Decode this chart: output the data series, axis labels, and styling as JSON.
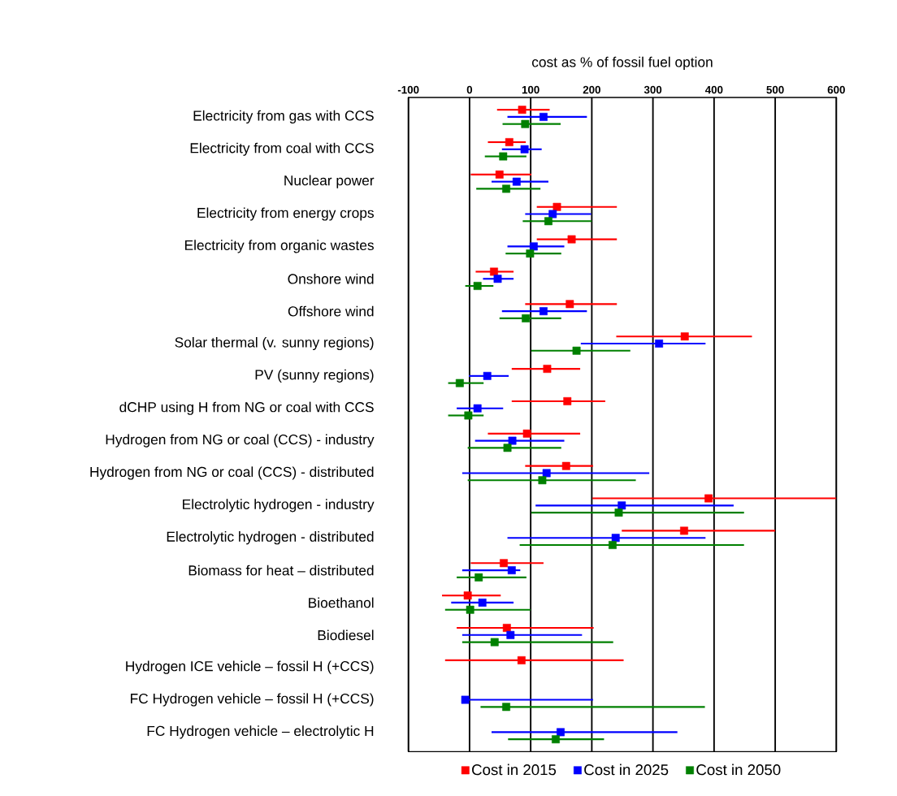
{
  "chart_data": {
    "type": "scatter",
    "orientation": "horizontal",
    "xlabel": "cost as % of fossil fuel option",
    "categories": [
      "Electricity from gas with CCS",
      "Electricity from coal with CCS",
      "Nuclear power",
      "Electricity from energy crops",
      "Electricity from organic wastes",
      "Onshore wind",
      "Offshore wind",
      "Solar thermal (v. sunny regions)",
      "PV (sunny regions)",
      "dCHP using H from NG or coal with CCS",
      "Hydrogen from NG or coal (CCS) - industry",
      "Hydrogen from NG or coal (CCS) - distributed",
      "Electrolytic hydrogen - industry",
      "Electrolytic hydrogen - distributed",
      "Biomass for heat – distributed",
      "Bioethanol",
      "Biodiesel",
      "Hydrogen ICE vehicle – fossil H (+CCS)",
      "FC Hydrogen vehicle – fossil H (+CCS)",
      "FC Hydrogen vehicle – electrolytic H"
    ],
    "series": [
      {
        "name": "Cost in 2015",
        "color": "#ff0000",
        "values": [
          86,
          65,
          49,
          143,
          167,
          40,
          164,
          352,
          127,
          160,
          94,
          158,
          391,
          351,
          56,
          -3,
          61,
          85,
          null,
          null
        ],
        "errors": [
          [
            45,
            131
          ],
          [
            30,
            92
          ],
          [
            2,
            101
          ],
          [
            110,
            241
          ],
          [
            110,
            241
          ],
          [
            10,
            72
          ],
          [
            91,
            241
          ],
          [
            240,
            462
          ],
          [
            69,
            181
          ],
          [
            69,
            222
          ],
          [
            30,
            181
          ],
          [
            91,
            202
          ],
          [
            201,
            600
          ],
          [
            249,
            500
          ],
          [
            2,
            121
          ],
          [
            -45,
            51
          ],
          [
            -21,
            203
          ],
          [
            -40,
            252
          ],
          null,
          null
        ]
      },
      {
        "name": "Cost in 2025",
        "color": "#0000ff",
        "values": [
          121,
          90,
          77,
          136,
          105,
          46,
          121,
          310,
          29,
          13,
          70,
          126,
          249,
          239,
          69,
          21,
          67,
          null,
          -7,
          149
        ],
        "errors": [
          [
            62,
            192
          ],
          [
            53,
            118
          ],
          [
            36,
            129
          ],
          [
            91,
            199
          ],
          [
            62,
            155
          ],
          [
            22,
            72
          ],
          [
            53,
            192
          ],
          [
            182,
            386
          ],
          [
            -1,
            64
          ],
          [
            -21,
            55
          ],
          [
            9,
            155
          ],
          [
            -12,
            294
          ],
          [
            108,
            432
          ],
          [
            62,
            386
          ],
          [
            -12,
            83
          ],
          [
            -30,
            72
          ],
          [
            -12,
            184
          ],
          null,
          [
            -12,
            202
          ],
          [
            36,
            340
          ]
        ]
      },
      {
        "name": "Cost in 2050",
        "color": "#008000",
        "values": [
          91,
          55,
          60,
          129,
          99,
          13,
          92,
          175,
          -16,
          -2,
          62,
          119,
          244,
          234,
          15,
          1,
          41,
          null,
          60,
          141
        ],
        "errors": [
          [
            54,
            149
          ],
          [
            25,
            93
          ],
          [
            11,
            116
          ],
          [
            87,
            200
          ],
          [
            59,
            150
          ],
          [
            -7,
            39
          ],
          [
            49,
            150
          ],
          [
            101,
            263
          ],
          [
            -35,
            23
          ],
          [
            -35,
            23
          ],
          [
            -3,
            150
          ],
          [
            -3,
            272
          ],
          [
            101,
            449
          ],
          [
            82,
            449
          ],
          [
            -21,
            93
          ],
          [
            -40,
            100
          ],
          [
            -12,
            235
          ],
          null,
          [
            18,
            385
          ],
          [
            63,
            220
          ]
        ]
      }
    ],
    "xlim": [
      -100,
      600
    ],
    "xticks": [
      -100,
      0,
      100,
      200,
      300,
      400,
      500,
      600
    ],
    "grid": "x",
    "legend": "bottom",
    "marker": "square"
  }
}
